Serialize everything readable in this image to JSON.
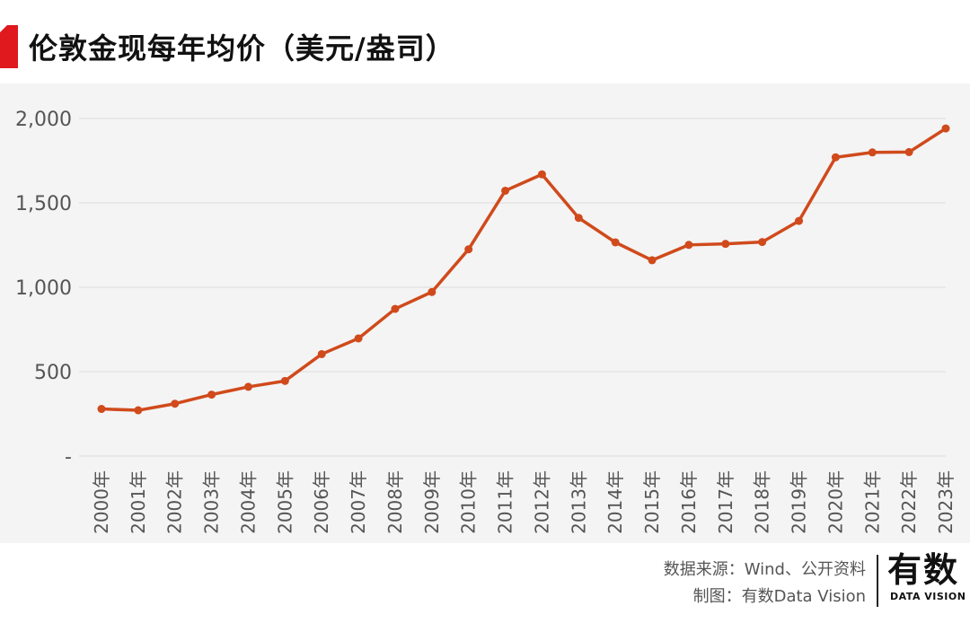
{
  "title": "伦敦金现每年均价（美元/盎司）",
  "footer": {
    "source": "数据来源：Wind、公开资料",
    "maker": "制图：有数Data Vision"
  },
  "logo": {
    "main": "有数",
    "sub": "DATA VISION"
  },
  "colors": {
    "accent": "#e0191e",
    "line": "#d04a1c",
    "background": "#f4f4f4",
    "grid": "#dddddd"
  },
  "chart_data": {
    "type": "line",
    "categories": [
      "2000年",
      "2001年",
      "2002年",
      "2003年",
      "2004年",
      "2005年",
      "2006年",
      "2007年",
      "2008年",
      "2009年",
      "2010年",
      "2011年",
      "2012年",
      "2013年",
      "2014年",
      "2015年",
      "2016年",
      "2017年",
      "2018年",
      "2019年",
      "2020年",
      "2021年",
      "2022年",
      "2023年"
    ],
    "series": [
      {
        "values": [
          279,
          271,
          310,
          364,
          410,
          445,
          604,
          697,
          872,
          972,
          1225,
          1572,
          1669,
          1411,
          1266,
          1160,
          1251,
          1257,
          1268,
          1393,
          1770,
          1799,
          1801,
          1941
        ]
      }
    ],
    "ylim": [
      0,
      2000
    ],
    "yticks": [
      {
        "value": 0,
        "label": "-"
      },
      {
        "value": 500,
        "label": "500"
      },
      {
        "value": 1000,
        "label": "1,000"
      },
      {
        "value": 1500,
        "label": "1,500"
      },
      {
        "value": 2000,
        "label": "2,000"
      }
    ],
    "grid": true
  }
}
